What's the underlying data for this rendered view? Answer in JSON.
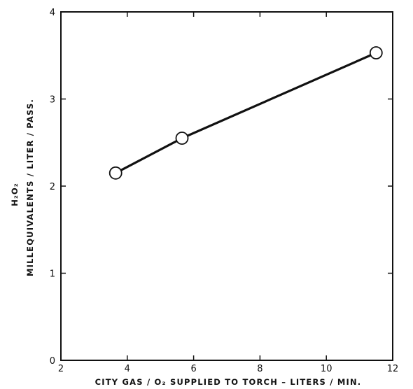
{
  "chart_data": {
    "type": "line",
    "title": "",
    "xlabel": "CITY GAS / O₂  SUPPLIED TO TORCH – LITERS / MIN.",
    "ylabel_line1": "H₂O₂",
    "ylabel_line2": "MILLEQUIVALENTS / LITER / PASS.",
    "xlim": [
      2,
      12
    ],
    "ylim": [
      0,
      4
    ],
    "x_ticks": [
      2,
      4,
      6,
      8,
      10,
      12
    ],
    "y_ticks": [
      0,
      1,
      2,
      3,
      4
    ],
    "grid": false,
    "legend": "none",
    "series": [
      {
        "marker": "open-circle",
        "color": "#111111",
        "x": [
          3.65,
          5.65,
          11.5
        ],
        "y": [
          2.15,
          2.55,
          3.53
        ]
      }
    ]
  }
}
